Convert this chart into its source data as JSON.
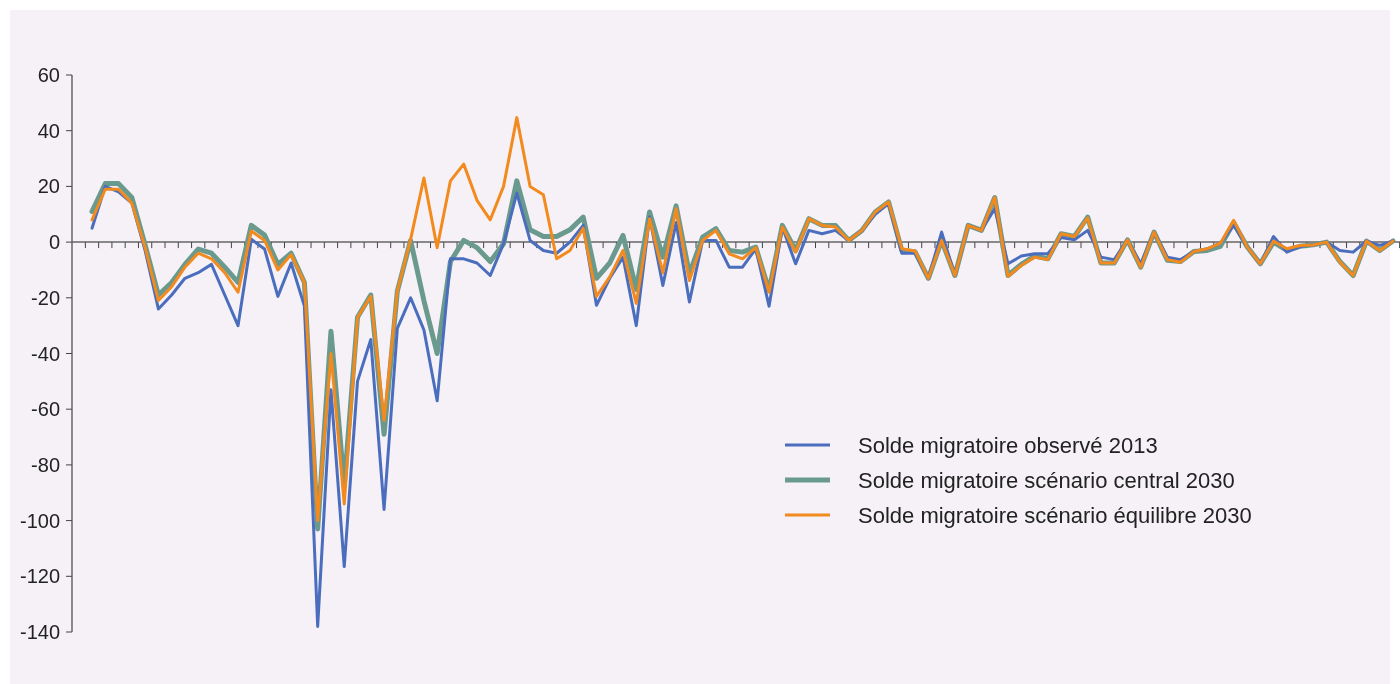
{
  "chart_data": {
    "type": "line",
    "categories": [
      null,
      null,
      null,
      null,
      null,
      null,
      null,
      null,
      null,
      null,
      null,
      null,
      null,
      null,
      null,
      null,
      null,
      null,
      null,
      null,
      null,
      null,
      null,
      null,
      null,
      null,
      null,
      null,
      null,
      null,
      null,
      null,
      null,
      null,
      null,
      null,
      null,
      null,
      null,
      null,
      null,
      null,
      null,
      null,
      null,
      null,
      null,
      null,
      null,
      null,
      null,
      null,
      null,
      null,
      null,
      null,
      null,
      null,
      null,
      null,
      null,
      null,
      null,
      null,
      null,
      null,
      null,
      null,
      null,
      null,
      null,
      null,
      null,
      null,
      null,
      null,
      null,
      null,
      null,
      null,
      null,
      null,
      null,
      null,
      null,
      null,
      null,
      null,
      null,
      null,
      null,
      null,
      null,
      null,
      null,
      null,
      null,
      null,
      null
    ],
    "series": [
      {
        "name": "Solde migratoire scénario central 2030",
        "color": "#6a9a8e",
        "values": [
          11,
          21,
          21,
          16,
          -1,
          -19,
          -14.5,
          -8,
          -2.5,
          -4,
          -9,
          -14.5,
          6,
          2.5,
          -8,
          -4,
          -14.5,
          -103,
          -32,
          -87.5,
          -27,
          -19,
          -69,
          -17.6,
          0.6,
          -21,
          -40,
          -7,
          0.6,
          -2,
          -7,
          -0.6,
          22,
          4.4,
          2,
          2,
          4.4,
          9,
          -13,
          -7.5,
          2.4,
          -17,
          10.8,
          -5.4,
          13,
          -11.4,
          1.8,
          4.8,
          -3,
          -3.6,
          -1.8,
          -17.4,
          6,
          -3,
          8.4,
          6,
          6,
          0.6,
          4.2,
          10.8,
          14.4,
          -3,
          -3.5,
          -13,
          0.6,
          -12,
          6,
          4.2,
          16,
          -12,
          -8,
          -5,
          -6,
          3,
          2,
          9,
          -7.5,
          -7.5,
          0.8,
          -9,
          3.6,
          -6.5,
          -7,
          -3.4,
          -3,
          -1.5,
          7,
          -1.6,
          -7.8,
          0,
          -3,
          -1.5,
          -1,
          0,
          -7,
          -12,
          0.4,
          -3,
          0.4
        ]
      },
      {
        "name": "Solde migratoire observé 2013",
        "color": "#4a6ebd",
        "values": [
          5,
          20,
          18,
          14,
          -3,
          -24,
          -19,
          -13,
          -11,
          -8,
          -19,
          -30,
          1,
          -2.5,
          -19.5,
          -7.5,
          -23,
          -138,
          -53,
          -116.5,
          -50,
          -35,
          -96,
          -31,
          -20,
          -31.5,
          -57,
          -6,
          -6,
          -7.5,
          -12,
          -0.6,
          17.6,
          0.6,
          -3,
          -4,
          0,
          6,
          -22.7,
          -13,
          -5.4,
          -30,
          9,
          -15.6,
          7,
          -21.5,
          0.6,
          0.6,
          -9,
          -9,
          -2.4,
          -23,
          5.4,
          -7.8,
          4.2,
          3,
          4.2,
          0.6,
          4.2,
          10,
          13.8,
          -4,
          -4,
          -13,
          3.6,
          -12,
          6,
          4.2,
          12,
          -7.8,
          -5,
          -4.2,
          -4.2,
          1.6,
          0.8,
          4.2,
          -5.4,
          -6.3,
          0.8,
          -7.8,
          3.6,
          -5.4,
          -6.3,
          -3.4,
          -2.4,
          -0.4,
          6,
          -1.6,
          -7.8,
          2,
          -3.6,
          -1.6,
          -1,
          0,
          -3,
          -3.6,
          0.4,
          -1.2,
          0.4
        ]
      },
      {
        "name": "Solde migratoire scénario équilibre 2030",
        "color": "#f28a1e",
        "values": [
          8,
          19,
          19,
          14,
          -2,
          -21,
          -16,
          -9,
          -4,
          -6,
          -11,
          -18,
          4,
          0.6,
          -10,
          -4.5,
          -14.5,
          -100,
          -40,
          -94,
          -27,
          -19.5,
          -64,
          -17.6,
          1,
          23,
          -2,
          22,
          28,
          15,
          8,
          20,
          44.7,
          20,
          17,
          -6,
          -3,
          5,
          -19.5,
          -12.5,
          -3,
          -22,
          8.4,
          -11,
          12,
          -13.8,
          0.6,
          4.2,
          -4.2,
          -6,
          -2,
          -18,
          5.4,
          -3.6,
          8.4,
          6,
          5.4,
          0.6,
          4.2,
          10.8,
          14.4,
          -2.4,
          -3.2,
          -13,
          0.6,
          -12,
          6,
          4.2,
          16,
          -12.3,
          -8.4,
          -5.4,
          -6.3,
          3,
          2,
          8.7,
          -7.5,
          -7.5,
          0.8,
          -9,
          3.6,
          -6.3,
          -7.2,
          -3.4,
          -2.4,
          -0.4,
          7.8,
          -1.6,
          -7.8,
          0.4,
          -2.4,
          -1.2,
          -1,
          0,
          -7.2,
          -12,
          0.4,
          -3,
          0.4
        ]
      }
    ],
    "ylim": [
      -140,
      60
    ],
    "yticks": [
      -140,
      -120,
      -100,
      -80,
      -60,
      -40,
      -20,
      0,
      20,
      40,
      60
    ],
    "legend": "right",
    "marker": "none",
    "line_style": "solid"
  }
}
